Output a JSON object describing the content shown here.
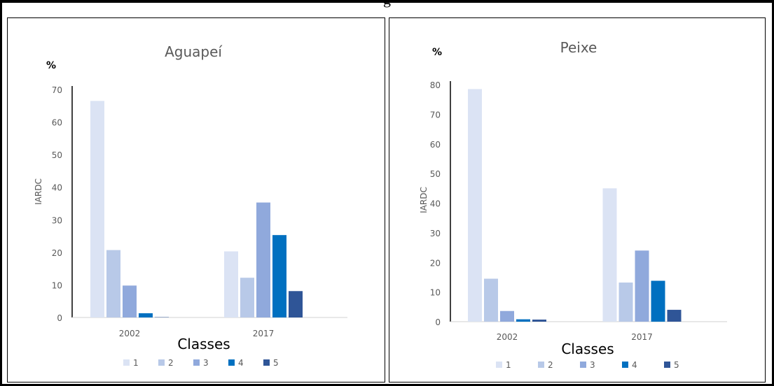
{
  "caption": "g",
  "chart_data": [
    {
      "type": "bar",
      "title": "Aguapeí",
      "unit_label": "%",
      "ylabel": "IARDC",
      "xlabel": "Classes",
      "categories": [
        "2002",
        "2017"
      ],
      "ylim": [
        0,
        70
      ],
      "yticks": [
        0,
        10,
        20,
        30,
        40,
        50,
        60,
        70
      ],
      "series": [
        {
          "name": "1",
          "color": "#dbe3f4",
          "values": [
            66.5,
            20.3
          ]
        },
        {
          "name": "2",
          "color": "#b8c9e8",
          "values": [
            20.7,
            12.2
          ]
        },
        {
          "name": "3",
          "color": "#90a9dc",
          "values": [
            9.8,
            35.3
          ]
        },
        {
          "name": "4",
          "color": "#0070c0",
          "values": [
            1.3,
            25.3
          ]
        },
        {
          "name": "5",
          "color": "#2f5597",
          "values": [
            0.1,
            8.1
          ]
        }
      ],
      "legend": "bottom"
    },
    {
      "type": "bar",
      "title": "Peixe",
      "unit_label": "%",
      "ylabel": "IARDC",
      "xlabel": "Classes",
      "categories": [
        "2002",
        "2017"
      ],
      "ylim": [
        0,
        80
      ],
      "yticks": [
        0,
        10,
        20,
        30,
        40,
        50,
        60,
        70,
        80
      ],
      "series": [
        {
          "name": "1",
          "color": "#dbe3f4",
          "values": [
            78.5,
            45.0
          ]
        },
        {
          "name": "2",
          "color": "#b8c9e8",
          "values": [
            14.5,
            13.2
          ]
        },
        {
          "name": "3",
          "color": "#90a9dc",
          "values": [
            3.6,
            24.0
          ]
        },
        {
          "name": "4",
          "color": "#0070c0",
          "values": [
            0.8,
            13.8
          ]
        },
        {
          "name": "5",
          "color": "#2f5597",
          "values": [
            0.7,
            4.0
          ]
        }
      ],
      "legend": "bottom"
    }
  ]
}
